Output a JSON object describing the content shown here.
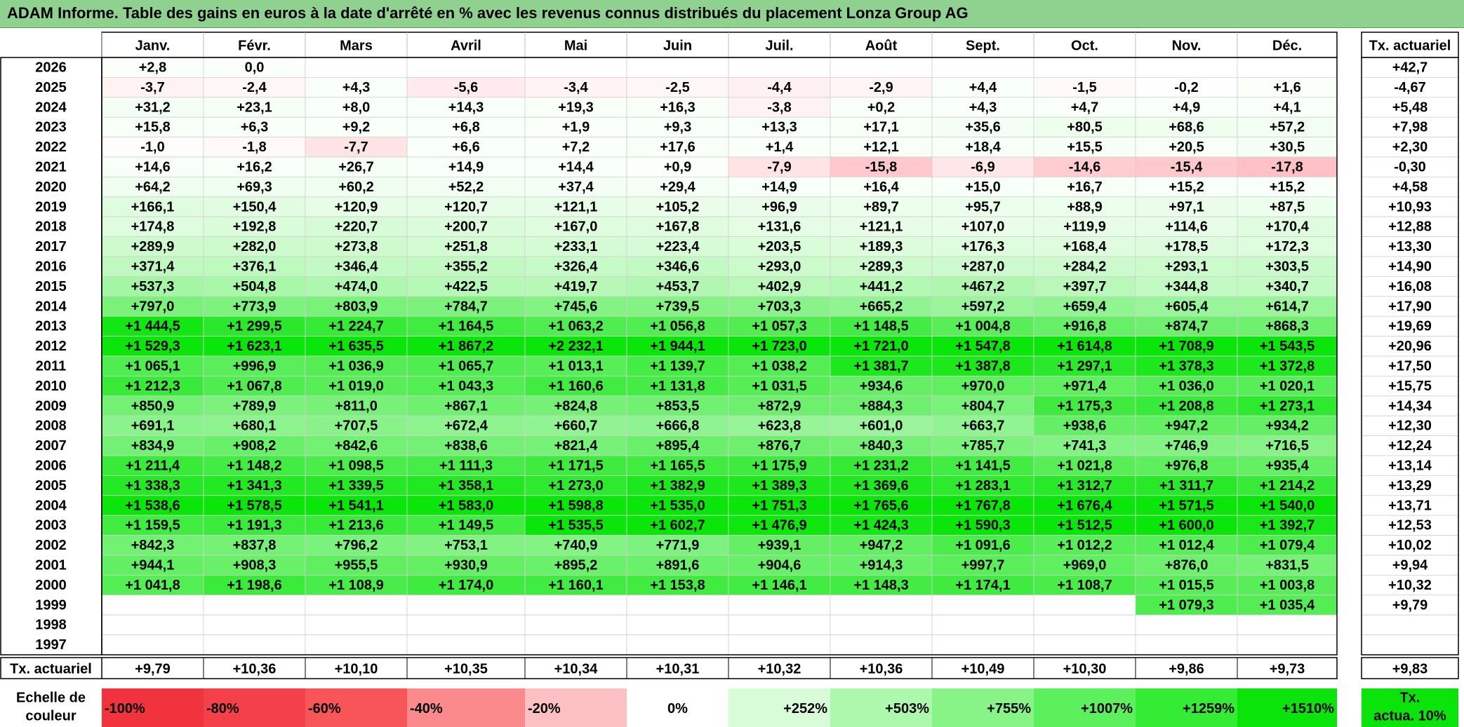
{
  "title": "ADAM Informe. Table des gains en euros à la date d'arrêté en % avec les revenus connus distribués du placement Lonza Group AG",
  "months": [
    "Janv.",
    "Févr.",
    "Mars",
    "Avril",
    "Mai",
    "Juin",
    "Juil.",
    "Août",
    "Sept.",
    "Oct.",
    "Nov.",
    "Déc."
  ],
  "rate_header": "Tx. actuariel",
  "rows": [
    {
      "year": "2026",
      "values": [
        "+2,8",
        "0,0",
        "",
        "",
        "",
        "",
        "",
        "",
        "",
        "",
        "",
        ""
      ],
      "rate": "+42,7"
    },
    {
      "year": "2025",
      "values": [
        "-3,7",
        "-2,4",
        "+4,3",
        "-5,6",
        "-3,4",
        "-2,5",
        "-4,4",
        "-2,9",
        "+4,4",
        "-1,5",
        "-0,2",
        "+1,6"
      ],
      "rate": "-4,67"
    },
    {
      "year": "2024",
      "values": [
        "+31,2",
        "+23,1",
        "+8,0",
        "+14,3",
        "+19,3",
        "+16,3",
        "-3,8",
        "+0,2",
        "+4,3",
        "+4,7",
        "+4,9",
        "+4,1"
      ],
      "rate": "+5,48"
    },
    {
      "year": "2023",
      "values": [
        "+15,8",
        "+6,3",
        "+9,2",
        "+6,8",
        "+1,9",
        "+9,3",
        "+13,3",
        "+17,1",
        "+35,6",
        "+80,5",
        "+68,6",
        "+57,2"
      ],
      "rate": "+7,98"
    },
    {
      "year": "2022",
      "values": [
        "-1,0",
        "-1,8",
        "-7,7",
        "+6,6",
        "+7,2",
        "+17,6",
        "+1,4",
        "+12,1",
        "+18,4",
        "+15,5",
        "+20,5",
        "+30,5"
      ],
      "rate": "+2,30"
    },
    {
      "year": "2021",
      "values": [
        "+14,6",
        "+16,2",
        "+26,7",
        "+14,9",
        "+14,4",
        "+0,9",
        "-7,9",
        "-15,8",
        "-6,9",
        "-14,6",
        "-15,4",
        "-17,8"
      ],
      "rate": "-0,30"
    },
    {
      "year": "2020",
      "values": [
        "+64,2",
        "+69,3",
        "+60,2",
        "+52,2",
        "+37,4",
        "+29,4",
        "+14,9",
        "+16,4",
        "+15,0",
        "+16,7",
        "+15,2",
        "+15,2"
      ],
      "rate": "+4,58"
    },
    {
      "year": "2019",
      "values": [
        "+166,1",
        "+150,4",
        "+120,9",
        "+120,7",
        "+121,1",
        "+105,2",
        "+96,9",
        "+89,7",
        "+95,7",
        "+88,9",
        "+97,1",
        "+87,5"
      ],
      "rate": "+10,93"
    },
    {
      "year": "2018",
      "values": [
        "+174,8",
        "+192,8",
        "+220,7",
        "+200,7",
        "+167,0",
        "+167,8",
        "+131,6",
        "+121,1",
        "+107,0",
        "+119,9",
        "+114,6",
        "+170,4"
      ],
      "rate": "+12,88"
    },
    {
      "year": "2017",
      "values": [
        "+289,9",
        "+282,0",
        "+273,8",
        "+251,8",
        "+233,1",
        "+223,4",
        "+203,5",
        "+189,3",
        "+176,3",
        "+168,4",
        "+178,5",
        "+172,3"
      ],
      "rate": "+13,30"
    },
    {
      "year": "2016",
      "values": [
        "+371,4",
        "+376,1",
        "+346,4",
        "+355,2",
        "+326,4",
        "+346,6",
        "+293,0",
        "+289,3",
        "+287,0",
        "+284,2",
        "+293,1",
        "+303,5"
      ],
      "rate": "+14,90"
    },
    {
      "year": "2015",
      "values": [
        "+537,3",
        "+504,8",
        "+474,0",
        "+422,5",
        "+419,7",
        "+453,7",
        "+402,9",
        "+441,2",
        "+467,2",
        "+397,7",
        "+344,8",
        "+340,7"
      ],
      "rate": "+16,08"
    },
    {
      "year": "2014",
      "values": [
        "+797,0",
        "+773,9",
        "+803,9",
        "+784,7",
        "+745,6",
        "+739,5",
        "+703,3",
        "+665,2",
        "+597,2",
        "+659,4",
        "+605,4",
        "+614,7"
      ],
      "rate": "+17,90"
    },
    {
      "year": "2013",
      "values": [
        "+1 444,5",
        "+1 299,5",
        "+1 224,7",
        "+1 164,5",
        "+1 063,2",
        "+1 056,8",
        "+1 057,3",
        "+1 148,5",
        "+1 004,8",
        "+916,8",
        "+874,7",
        "+868,3"
      ],
      "rate": "+19,69"
    },
    {
      "year": "2012",
      "values": [
        "+1 529,3",
        "+1 623,1",
        "+1 635,5",
        "+1 867,2",
        "+2 232,1",
        "+1 944,1",
        "+1 723,0",
        "+1 721,0",
        "+1 547,8",
        "+1 614,8",
        "+1 708,9",
        "+1 543,5"
      ],
      "rate": "+20,96"
    },
    {
      "year": "2011",
      "values": [
        "+1 065,1",
        "+996,9",
        "+1 036,9",
        "+1 065,7",
        "+1 013,1",
        "+1 139,7",
        "+1 038,2",
        "+1 381,7",
        "+1 387,8",
        "+1 297,1",
        "+1 378,3",
        "+1 372,8"
      ],
      "rate": "+17,50"
    },
    {
      "year": "2010",
      "values": [
        "+1 212,3",
        "+1 067,8",
        "+1 019,0",
        "+1 043,3",
        "+1 160,6",
        "+1 131,8",
        "+1 031,5",
        "+934,6",
        "+970,0",
        "+971,4",
        "+1 036,0",
        "+1 020,1"
      ],
      "rate": "+15,75"
    },
    {
      "year": "2009",
      "values": [
        "+850,9",
        "+789,9",
        "+811,0",
        "+867,1",
        "+824,8",
        "+853,5",
        "+872,9",
        "+884,3",
        "+804,7",
        "+1 175,3",
        "+1 208,8",
        "+1 273,1"
      ],
      "rate": "+14,34"
    },
    {
      "year": "2008",
      "values": [
        "+691,1",
        "+680,1",
        "+707,5",
        "+672,4",
        "+660,7",
        "+666,8",
        "+623,8",
        "+601,0",
        "+663,7",
        "+938,6",
        "+947,2",
        "+934,2"
      ],
      "rate": "+12,30"
    },
    {
      "year": "2007",
      "values": [
        "+834,9",
        "+908,2",
        "+842,6",
        "+838,6",
        "+821,4",
        "+895,4",
        "+876,7",
        "+840,3",
        "+785,7",
        "+741,3",
        "+746,9",
        "+716,5"
      ],
      "rate": "+12,24"
    },
    {
      "year": "2006",
      "values": [
        "+1 211,4",
        "+1 148,2",
        "+1 098,5",
        "+1 111,3",
        "+1 171,5",
        "+1 165,5",
        "+1 175,9",
        "+1 231,2",
        "+1 141,5",
        "+1 021,8",
        "+976,8",
        "+935,4"
      ],
      "rate": "+13,14"
    },
    {
      "year": "2005",
      "values": [
        "+1 338,3",
        "+1 341,3",
        "+1 339,5",
        "+1 358,1",
        "+1 273,0",
        "+1 382,9",
        "+1 389,3",
        "+1 369,6",
        "+1 283,1",
        "+1 312,7",
        "+1 311,7",
        "+1 214,2"
      ],
      "rate": "+13,29"
    },
    {
      "year": "2004",
      "values": [
        "+1 538,6",
        "+1 578,5",
        "+1 541,1",
        "+1 583,0",
        "+1 598,8",
        "+1 535,0",
        "+1 751,3",
        "+1 765,6",
        "+1 767,8",
        "+1 676,4",
        "+1 571,5",
        "+1 540,0"
      ],
      "rate": "+13,71"
    },
    {
      "year": "2003",
      "values": [
        "+1 159,5",
        "+1 191,3",
        "+1 213,6",
        "+1 149,5",
        "+1 535,5",
        "+1 602,7",
        "+1 476,9",
        "+1 424,3",
        "+1 590,3",
        "+1 512,5",
        "+1 600,0",
        "+1 392,7"
      ],
      "rate": "+12,53"
    },
    {
      "year": "2002",
      "values": [
        "+842,3",
        "+837,8",
        "+796,2",
        "+753,1",
        "+740,9",
        "+771,9",
        "+939,1",
        "+947,2",
        "+1 091,6",
        "+1 012,2",
        "+1 012,4",
        "+1 079,4"
      ],
      "rate": "+10,02"
    },
    {
      "year": "2001",
      "values": [
        "+944,1",
        "+908,3",
        "+955,5",
        "+930,9",
        "+895,2",
        "+891,6",
        "+904,6",
        "+914,3",
        "+997,7",
        "+969,0",
        "+876,0",
        "+831,5"
      ],
      "rate": "+9,94"
    },
    {
      "year": "2000",
      "values": [
        "+1 041,8",
        "+1 198,6",
        "+1 108,9",
        "+1 174,0",
        "+1 160,1",
        "+1 153,8",
        "+1 146,1",
        "+1 148,3",
        "+1 174,1",
        "+1 108,7",
        "+1 015,5",
        "+1 003,8"
      ],
      "rate": "+10,32"
    },
    {
      "year": "1999",
      "values": [
        "",
        "",
        "",
        "",
        "",
        "",
        "",
        "",
        "",
        "",
        "+1 079,3",
        "+1 035,4"
      ],
      "rate": "+9,79"
    },
    {
      "year": "1998",
      "values": [
        "",
        "",
        "",
        "",
        "",
        "",
        "",
        "",
        "",
        "",
        "",
        ""
      ],
      "rate": ""
    },
    {
      "year": "1997",
      "values": [
        "",
        "",
        "",
        "",
        "",
        "",
        "",
        "",
        "",
        "",
        "",
        ""
      ],
      "rate": ""
    }
  ],
  "summary": {
    "label": "Tx. actuariel",
    "values": [
      "+9,79",
      "+10,36",
      "+10,10",
      "+10,35",
      "+10,34",
      "+10,31",
      "+10,32",
      "+10,36",
      "+10,49",
      "+10,30",
      "+9,86",
      "+9,73"
    ],
    "rate": "+9,83"
  },
  "scale": {
    "label_line1": "Echelle de",
    "label_line2": "couleur",
    "items": [
      "-100%",
      "-80%",
      "-60%",
      "-40%",
      "-20%",
      "0%",
      "+252%",
      "+503%",
      "+755%",
      "+1007%",
      "+1259%",
      "+1510%"
    ],
    "colors": [
      "#f0333c",
      "#f44048",
      "#f85558",
      "#fa8a8c",
      "#fcc0c2",
      "#ffffff",
      "#d8fcd8",
      "#acf8ac",
      "#88f488",
      "#5cf05c",
      "#34ec34",
      "#0ae40a"
    ],
    "rate_line1": "Tx.",
    "rate_line2": "actua. 10%",
    "rate_color": "#0ae40a"
  }
}
